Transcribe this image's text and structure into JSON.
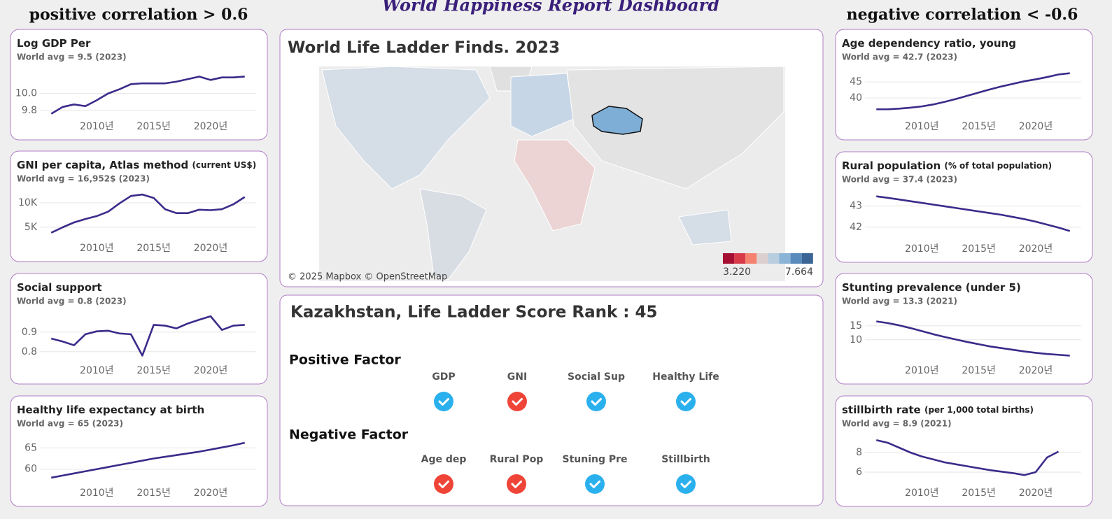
{
  "headers": {
    "title": "World Happiness Report Dashboard",
    "left": "positive correlation > 0.6",
    "right": "negative correlation < -0.6"
  },
  "chart_data": [
    {
      "type": "line",
      "title": "Log GDP Per",
      "subtitle": "World avg = 9.5 (2023)",
      "color": "#3d2a8a",
      "x": [
        2006,
        2007,
        2008,
        2009,
        2010,
        2011,
        2012,
        2013,
        2014,
        2015,
        2016,
        2017,
        2018,
        2019,
        2020,
        2021,
        2022,
        2023
      ],
      "values": [
        9.76,
        9.84,
        9.87,
        9.85,
        9.92,
        10.0,
        10.05,
        10.11,
        10.12,
        10.12,
        10.12,
        10.14,
        10.17,
        10.2,
        10.16,
        10.19,
        10.19,
        10.2
      ],
      "xlim": [
        2005,
        2024
      ],
      "ylim": [
        9.74,
        10.32
      ],
      "xticks": [
        {
          "value": 2010,
          "label": "2010년"
        },
        {
          "value": 2015,
          "label": "2015년"
        },
        {
          "value": 2020,
          "label": "2020년"
        }
      ],
      "yticks": [
        9.8,
        {
          "value": 10,
          "label": "10.0"
        }
      ],
      "grid": true
    },
    {
      "type": "line",
      "title": "GNI per capita, Atlas method",
      "title_note": "(current US$)",
      "subtitle": "World avg = 16,952$ (2023)",
      "color": "#3d2a8a",
      "x": [
        2006,
        2007,
        2008,
        2009,
        2010,
        2011,
        2012,
        2013,
        2014,
        2015,
        2016,
        2017,
        2018,
        2019,
        2020,
        2021,
        2022,
        2023
      ],
      "values": [
        3900,
        5000,
        6000,
        6700,
        7300,
        8200,
        9900,
        11400,
        11700,
        11000,
        8700,
        7900,
        7900,
        8600,
        8500,
        8700,
        9700,
        11200
      ],
      "xlim": [
        2005,
        2024
      ],
      "ylim": [
        3000,
        13000
      ],
      "xticks": [
        {
          "value": 2010,
          "label": "2010년"
        },
        {
          "value": 2015,
          "label": "2015년"
        },
        {
          "value": 2020,
          "label": "2020년"
        }
      ],
      "yticks": [
        {
          "value": 5000,
          "label": "5K"
        },
        {
          "value": 10000,
          "label": "10K"
        }
      ],
      "grid": true
    },
    {
      "type": "line",
      "title": "Social support",
      "subtitle": "World avg = 0.8 (2023)",
      "color": "#3d2a8a",
      "x": [
        2006,
        2007,
        2008,
        2009,
        2010,
        2011,
        2012,
        2013,
        2014,
        2015,
        2016,
        2017,
        2018,
        2019,
        2020,
        2021,
        2022,
        2023
      ],
      "values": [
        0.867,
        0.852,
        0.833,
        0.889,
        0.904,
        0.907,
        0.893,
        0.889,
        0.78,
        0.937,
        0.933,
        0.919,
        0.944,
        0.963,
        0.981,
        0.911,
        0.933,
        0.937
      ],
      "xlim": [
        2005,
        2024
      ],
      "ylim": [
        0.76,
        1.01
      ],
      "xticks": [
        {
          "value": 2010,
          "label": "2010년"
        },
        {
          "value": 2015,
          "label": "2015년"
        },
        {
          "value": 2020,
          "label": "2020년"
        }
      ],
      "yticks": [
        0.8,
        0.9
      ],
      "grid": true
    },
    {
      "type": "line",
      "title": "Healthy life expectancy at birth",
      "subtitle": "World avg = 65 (2023)",
      "color": "#3d2a8a",
      "x": [
        2006,
        2007,
        2008,
        2009,
        2010,
        2011,
        2012,
        2013,
        2014,
        2015,
        2016,
        2017,
        2018,
        2019,
        2020,
        2021,
        2022,
        2023
      ],
      "values": [
        58.0,
        58.5,
        59.0,
        59.5,
        60.0,
        60.5,
        61.0,
        61.5,
        62.0,
        62.5,
        62.9,
        63.3,
        63.7,
        64.1,
        64.6,
        65.1,
        65.6,
        66.2
      ],
      "xlim": [
        2005,
        2024
      ],
      "ylim": [
        57,
        68.5
      ],
      "xticks": [
        {
          "value": 2010,
          "label": "2010년"
        },
        {
          "value": 2015,
          "label": "2015년"
        },
        {
          "value": 2020,
          "label": "2020년"
        }
      ],
      "yticks": [
        60,
        65
      ],
      "grid": true
    },
    {
      "type": "line",
      "title": "Age dependency ratio, young",
      "subtitle": "World avg = 42.7 (2023)",
      "color": "#3d2a8a",
      "x": [
        2006,
        2007,
        2008,
        2009,
        2010,
        2011,
        2012,
        2013,
        2014,
        2015,
        2016,
        2017,
        2018,
        2019,
        2020,
        2021,
        2022,
        2023
      ],
      "values": [
        36.5,
        36.5,
        36.7,
        37.0,
        37.4,
        38.0,
        38.8,
        39.7,
        40.7,
        41.7,
        42.7,
        43.6,
        44.4,
        45.2,
        45.8,
        46.5,
        47.3,
        47.7
      ],
      "xlim": [
        2005,
        2024
      ],
      "ylim": [
        34.6,
        49.8
      ],
      "xticks": [
        {
          "value": 2010,
          "label": "2010년"
        },
        {
          "value": 2015,
          "label": "2015년"
        },
        {
          "value": 2020,
          "label": "2020년"
        }
      ],
      "yticks": [
        40,
        45
      ],
      "grid": true
    },
    {
      "type": "line",
      "title": "Rural population",
      "title_note": "(% of total population)",
      "subtitle": "World avg = 37.4 (2023)",
      "color": "#3d2a8a",
      "x": [
        2006,
        2007,
        2008,
        2009,
        2010,
        2011,
        2012,
        2013,
        2014,
        2015,
        2016,
        2017,
        2018,
        2019,
        2020,
        2021,
        2022,
        2023
      ],
      "values": [
        43.45,
        43.38,
        43.3,
        43.22,
        43.14,
        43.06,
        42.98,
        42.9,
        42.82,
        42.74,
        42.66,
        42.58,
        42.48,
        42.38,
        42.26,
        42.12,
        41.98,
        41.82
      ],
      "xlim": [
        2005,
        2024
      ],
      "ylim": [
        41.5,
        43.8
      ],
      "xticks": [
        {
          "value": 2010,
          "label": "2010년"
        },
        {
          "value": 2015,
          "label": "2015년"
        },
        {
          "value": 2020,
          "label": "2020년"
        }
      ],
      "yticks": [
        42,
        43
      ],
      "grid": true
    },
    {
      "type": "line",
      "title": "Stunting prevalence (under 5)",
      "subtitle": "World avg = 13.3 (2021)",
      "color": "#3d2a8a",
      "x": [
        2006,
        2007,
        2008,
        2009,
        2010,
        2011,
        2012,
        2013,
        2014,
        2015,
        2016,
        2017,
        2018,
        2019,
        2020,
        2021,
        2022,
        2023
      ],
      "values": [
        16.6,
        16.0,
        15.2,
        14.2,
        13.1,
        12.0,
        11.0,
        10.1,
        9.2,
        8.4,
        7.6,
        7.0,
        6.4,
        5.8,
        5.3,
        4.9,
        4.6,
        4.3
      ],
      "xlim": [
        2005,
        2024
      ],
      "ylim": [
        2.9,
        20.5
      ],
      "xticks": [
        {
          "value": 2010,
          "label": "2010년"
        },
        {
          "value": 2015,
          "label": "2015년"
        },
        {
          "value": 2020,
          "label": "2020년"
        }
      ],
      "yticks": [
        10,
        15
      ],
      "grid": true
    },
    {
      "type": "line",
      "title": "stillbirth rate",
      "title_note": "(per 1,000 total births)",
      "subtitle": "World avg = 8.9 (2021)",
      "color": "#3d2a8a",
      "x": [
        2006,
        2007,
        2008,
        2009,
        2010,
        2011,
        2012,
        2013,
        2014,
        2015,
        2016,
        2017,
        2018,
        2019,
        2020,
        2021,
        2022
      ],
      "values": [
        9.27,
        9.0,
        8.5,
        8.0,
        7.6,
        7.3,
        7.0,
        6.8,
        6.6,
        6.4,
        6.2,
        6.05,
        5.9,
        5.7,
        6.0,
        7.5,
        8.1
      ],
      "xlim": [
        2005,
        2024
      ],
      "ylim": [
        5,
        10
      ],
      "xticks": [
        {
          "value": 2010,
          "label": "2010년"
        },
        {
          "value": 2015,
          "label": "2015년"
        },
        {
          "value": 2020,
          "label": "2020년"
        }
      ],
      "yticks": [
        6,
        8
      ],
      "grid": true
    }
  ],
  "map": {
    "title": "World Life Ladder Finds. 2023",
    "attribution": "© 2025 Mapbox © OpenStreetMap",
    "legend_labels": [
      "3.220",
      "7.664"
    ],
    "legend_colors": [
      "#a50f32",
      "#d93a48",
      "#f4826e",
      "#ddd0d0",
      "#b9cde0",
      "#8ab3d6",
      "#5a8bbd",
      "#3a6594"
    ]
  },
  "rank": {
    "title": "Kazakhstan, Life Ladder Score Rank : 45",
    "positive_title": "Positive Factor",
    "positive": [
      {
        "label": "GDP",
        "color": "#2bb0ee"
      },
      {
        "label": "GNI",
        "color": "#ef4538"
      },
      {
        "label": "Social Sup",
        "color": "#2bb0ee"
      },
      {
        "label": "Healthy Life",
        "color": "#2bb0ee"
      }
    ],
    "negative_title": "Negative Factor",
    "negative": [
      {
        "label": "Age dep",
        "color": "#ef4538"
      },
      {
        "label": "Rural Pop",
        "color": "#ef4538"
      },
      {
        "label": "Stuning Pre",
        "color": "#2bb0ee"
      },
      {
        "label": "Stillbirth",
        "color": "#2bb0ee"
      }
    ]
  }
}
